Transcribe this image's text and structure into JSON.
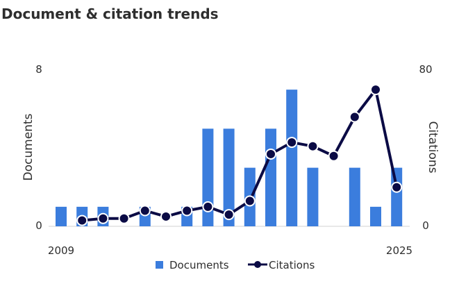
{
  "chart_data": {
    "type": "bar+line",
    "title": "Document & citation trends",
    "x": [
      2009,
      2010,
      2011,
      2012,
      2013,
      2014,
      2015,
      2016,
      2017,
      2018,
      2019,
      2020,
      2021,
      2022,
      2023,
      2024,
      2025
    ],
    "x_tick_labels": [
      "2009",
      "2025"
    ],
    "series": [
      {
        "name": "Documents",
        "type": "bar",
        "axis": "left",
        "color": "#3b7ddd",
        "values": [
          1,
          1,
          1,
          0,
          1,
          0,
          1,
          5,
          5,
          3,
          5,
          7,
          3,
          0,
          3,
          1,
          3
        ]
      },
      {
        "name": "Citations",
        "type": "line",
        "axis": "right",
        "color": "#0b0b45",
        "values": [
          null,
          3,
          4,
          4,
          8,
          5,
          8,
          10,
          6,
          13,
          37,
          43,
          41,
          36,
          56,
          70,
          20
        ]
      }
    ],
    "y_left": {
      "label": "Documents",
      "ylim": [
        0,
        8
      ],
      "ticks": [
        "0",
        "8"
      ]
    },
    "y_right": {
      "label": "Citations",
      "ylim": [
        0,
        80
      ],
      "ticks": [
        "0",
        "80"
      ]
    },
    "legend": {
      "position": "bottom"
    },
    "grid": false
  }
}
